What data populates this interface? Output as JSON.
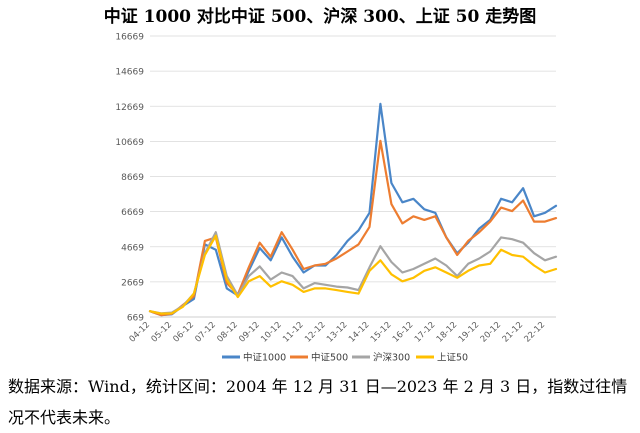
{
  "title": "中证 1000 对比中证 500、沪深 300、上证 50 走势图",
  "source_note": "数据来源：Wind，统计区间：2004 年 12 月 31 日—2023 年 2 月 3 日，指数过往情况不代表未来。",
  "chart_data": {
    "type": "line",
    "title": "中证 1000 对比中证 500、沪深 300、上证 50 走势图",
    "xlabel": "",
    "ylabel": "",
    "ylim": [
      669,
      16669
    ],
    "yticks": [
      669,
      2669,
      4669,
      6669,
      8669,
      10669,
      12669,
      14669,
      16669
    ],
    "grid": true,
    "legend": "bottom",
    "x_ticks": [
      "04-12",
      "05-12",
      "06-12",
      "07-12",
      "08-12",
      "09-12",
      "10-12",
      "11-12",
      "12-12",
      "13-12",
      "14-12",
      "15-12",
      "16-12",
      "17-12",
      "18-12",
      "19-12",
      "20-12",
      "21-12",
      "22-12"
    ],
    "x": [
      "2004-12",
      "2005-06",
      "2005-12",
      "2006-06",
      "2006-12",
      "2007-06",
      "2007-12",
      "2008-06",
      "2008-12",
      "2009-06",
      "2009-12",
      "2010-06",
      "2010-12",
      "2011-06",
      "2011-12",
      "2012-06",
      "2012-12",
      "2013-06",
      "2013-12",
      "2014-06",
      "2014-12",
      "2015-06",
      "2015-12",
      "2016-06",
      "2016-12",
      "2017-06",
      "2017-12",
      "2018-06",
      "2018-12",
      "2019-06",
      "2019-12",
      "2020-06",
      "2020-12",
      "2021-06",
      "2021-12",
      "2022-06",
      "2022-12",
      "2023-06"
    ],
    "series": [
      {
        "name": "中证1000",
        "color": "#4a86c8",
        "values": [
          1000,
          780,
          820,
          1300,
          1700,
          4800,
          4500,
          2300,
          1900,
          3300,
          4600,
          3900,
          5200,
          4100,
          3200,
          3600,
          3600,
          4200,
          5000,
          5600,
          6600,
          12800,
          8300,
          7200,
          7400,
          6800,
          6600,
          5200,
          4300,
          4900,
          5700,
          6200,
          7400,
          7200,
          8000,
          6400,
          6600,
          7000
        ]
      },
      {
        "name": "中证500",
        "color": "#ed7d31",
        "values": [
          1000,
          780,
          850,
          1350,
          1850,
          5000,
          5200,
          2600,
          1950,
          3500,
          4900,
          4100,
          5500,
          4500,
          3400,
          3600,
          3700,
          4000,
          4400,
          4800,
          5800,
          10700,
          7100,
          6000,
          6400,
          6200,
          6400,
          5200,
          4200,
          5000,
          5500,
          6100,
          6900,
          6700,
          7300,
          6100,
          6100,
          6300
        ]
      },
      {
        "name": "沪深300",
        "color": "#a5a5a5",
        "values": [
          1000,
          880,
          920,
          1300,
          2000,
          4300,
          5500,
          3000,
          1900,
          3000,
          3550,
          2800,
          3200,
          3000,
          2300,
          2600,
          2500,
          2400,
          2350,
          2200,
          3500,
          4700,
          3800,
          3200,
          3400,
          3700,
          4000,
          3600,
          3000,
          3700,
          4000,
          4400,
          5200,
          5100,
          4900,
          4300,
          3900,
          4100
        ]
      },
      {
        "name": "上证50",
        "color": "#ffc000",
        "values": [
          1000,
          860,
          880,
          1250,
          2000,
          4200,
          5300,
          2800,
          1800,
          2700,
          3000,
          2400,
          2700,
          2500,
          2100,
          2300,
          2300,
          2200,
          2100,
          2000,
          3300,
          3900,
          3100,
          2700,
          2900,
          3300,
          3500,
          3200,
          2900,
          3300,
          3600,
          3700,
          4500,
          4200,
          4100,
          3600,
          3200,
          3400
        ]
      }
    ]
  }
}
